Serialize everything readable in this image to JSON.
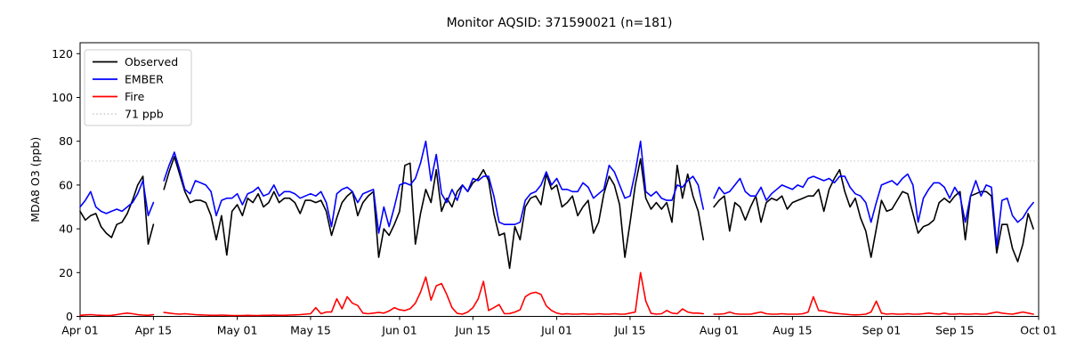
{
  "figure": {
    "title": "Monitor AQSID: 371590021 (n=181)"
  },
  "chart_data": {
    "type": "line",
    "title": "Monitor AQSID: 371590021 (n=181)",
    "xlabel": "",
    "ylabel": "MDA8 O3 (ppb)",
    "ylim": [
      0,
      125
    ],
    "grid": false,
    "legend_position": "upper-left",
    "y_ticks": [
      {
        "value": 0,
        "label": "0"
      },
      {
        "value": 20,
        "label": "20"
      },
      {
        "value": 40,
        "label": "40"
      },
      {
        "value": 60,
        "label": "60"
      },
      {
        "value": 80,
        "label": "80"
      },
      {
        "value": 100,
        "label": "100"
      },
      {
        "value": 120,
        "label": "120"
      }
    ],
    "x_range_days": [
      0,
      183
    ],
    "x_ticks": [
      {
        "day": 0,
        "label": "Apr 01"
      },
      {
        "day": 14,
        "label": "Apr 15"
      },
      {
        "day": 30,
        "label": "May 01"
      },
      {
        "day": 44,
        "label": "May 15"
      },
      {
        "day": 61,
        "label": "Jun 01"
      },
      {
        "day": 75,
        "label": "Jun 15"
      },
      {
        "day": 91,
        "label": "Jul 01"
      },
      {
        "day": 105,
        "label": "Jul 15"
      },
      {
        "day": 122,
        "label": "Aug 01"
      },
      {
        "day": 136,
        "label": "Aug 15"
      },
      {
        "day": 153,
        "label": "Sep 01"
      },
      {
        "day": 167,
        "label": "Sep 15"
      },
      {
        "day": 183,
        "label": "Oct 01"
      }
    ],
    "threshold": {
      "value": 71,
      "label": "71 ppb",
      "color": "#d3d3d3",
      "style": "dotted"
    },
    "legend": [
      {
        "label": "Observed",
        "color": "#000000",
        "style": "solid"
      },
      {
        "label": "EMBER",
        "color": "#0000ff",
        "style": "solid"
      },
      {
        "label": "Fire",
        "color": "#ff0000",
        "style": "solid"
      },
      {
        "label": "71 ppb",
        "color": "#d3d3d3",
        "style": "dotted"
      }
    ],
    "series": [
      {
        "name": "Observed",
        "color": "#000000",
        "values": [
          48,
          44,
          46,
          47,
          41,
          38,
          36,
          42,
          43,
          47,
          53,
          60,
          64,
          33,
          42,
          null,
          58,
          66,
          73,
          65,
          57,
          52,
          53,
          53,
          52,
          46,
          35,
          46,
          28,
          48,
          51,
          46,
          54,
          52,
          56,
          50,
          52,
          57,
          52,
          54,
          54,
          52,
          47,
          53,
          53,
          52,
          53,
          48,
          37,
          45,
          52,
          55,
          57,
          46,
          52,
          55,
          57,
          27,
          40,
          37,
          42,
          48,
          69,
          70,
          33,
          47,
          58,
          52,
          67,
          48,
          54,
          50,
          57,
          60,
          57,
          61,
          63,
          67,
          62,
          47,
          37,
          38,
          22,
          41,
          35,
          50,
          54,
          55,
          51,
          65,
          58,
          60,
          50,
          52,
          55,
          46,
          50,
          53,
          38,
          43,
          56,
          64,
          60,
          51,
          27,
          43,
          60,
          72,
          54,
          49,
          52,
          49,
          52,
          43,
          69,
          54,
          65,
          55,
          48,
          35,
          null,
          50,
          53,
          55,
          39,
          52,
          50,
          44,
          50,
          55,
          43,
          52,
          54,
          53,
          55,
          49,
          52,
          53,
          54,
          55,
          55,
          58,
          48,
          58,
          63,
          67,
          57,
          50,
          54,
          45,
          39,
          27,
          40,
          53,
          48,
          49,
          53,
          57,
          56,
          47,
          38,
          41,
          42,
          44,
          52,
          54,
          52,
          55,
          57,
          35,
          55,
          56,
          57,
          57,
          55,
          29,
          42,
          42,
          31,
          25,
          33,
          47,
          40
        ]
      },
      {
        "name": "EMBER",
        "color": "#0000ff",
        "values": [
          50,
          53,
          57,
          50,
          48,
          47,
          48,
          49,
          48,
          50,
          52,
          56,
          62,
          46,
          52,
          null,
          62,
          69,
          75,
          67,
          58,
          56,
          62,
          61,
          60,
          57,
          46,
          53,
          54,
          54,
          56,
          51,
          56,
          57,
          59,
          55,
          56,
          60,
          55,
          57,
          57,
          56,
          54,
          55,
          56,
          55,
          57,
          52,
          41,
          56,
          58,
          59,
          57,
          52,
          56,
          57,
          58,
          38,
          50,
          41,
          50,
          60,
          61,
          60,
          63,
          70,
          80,
          62,
          74,
          56,
          52,
          58,
          53,
          60,
          57,
          63,
          62,
          64,
          64,
          55,
          43,
          42,
          42,
          42,
          43,
          53,
          56,
          57,
          60,
          66,
          60,
          63,
          58,
          58,
          57,
          57,
          61,
          59,
          54,
          56,
          58,
          69,
          66,
          60,
          54,
          55,
          66,
          80,
          57,
          55,
          57,
          54,
          53,
          53,
          60,
          59,
          62,
          64,
          60,
          49,
          null,
          54,
          59,
          56,
          57,
          60,
          63,
          57,
          55,
          55,
          59,
          53,
          56,
          58,
          60,
          59,
          58,
          60,
          59,
          63,
          64,
          63,
          62,
          63,
          61,
          64,
          64,
          59,
          56,
          55,
          52,
          43,
          52,
          60,
          61,
          62,
          60,
          63,
          65,
          60,
          43,
          54,
          58,
          61,
          61,
          59,
          54,
          59,
          55,
          43,
          55,
          62,
          55,
          60,
          59,
          32,
          53,
          54,
          46,
          43,
          45,
          49,
          52
        ]
      },
      {
        "name": "Fire",
        "color": "#ff0000",
        "values": [
          0.5,
          0.7,
          0.8,
          0.6,
          0.5,
          0.4,
          0.5,
          0.8,
          1.2,
          1.5,
          1.2,
          0.8,
          0.6,
          0.5,
          0.8,
          null,
          1.8,
          1.5,
          1.2,
          1.0,
          1.2,
          1.0,
          0.8,
          0.7,
          0.6,
          0.5,
          0.5,
          0.6,
          0.5,
          0.4,
          0.4,
          0.4,
          0.5,
          0.4,
          0.4,
          0.5,
          0.5,
          0.6,
          0.5,
          0.5,
          0.6,
          0.7,
          0.8,
          1.0,
          1.2,
          4.0,
          1.2,
          2.0,
          2.0,
          8.0,
          3.5,
          9.0,
          6.0,
          5.0,
          1.5,
          1.2,
          1.5,
          1.8,
          1.5,
          2.5,
          4.0,
          3.0,
          2.7,
          3.5,
          6.0,
          11.0,
          18.0,
          7.5,
          14.0,
          15.0,
          10.0,
          4.0,
          1.4,
          1.0,
          2.0,
          4.0,
          8.0,
          16.0,
          2.7,
          4.0,
          5.4,
          1.2,
          1.3,
          2.0,
          3.0,
          9.0,
          10.5,
          11.0,
          10.0,
          4.8,
          2.7,
          1.5,
          1.0,
          1.2,
          1.0,
          1.0,
          1.2,
          1.0,
          1.0,
          1.2,
          1.0,
          1.0,
          1.2,
          1.0,
          1.0,
          1.5,
          2.0,
          20.0,
          7.0,
          1.4,
          1.0,
          1.2,
          2.7,
          1.5,
          1.2,
          3.4,
          2.0,
          1.5,
          1.5,
          1.2,
          null,
          1.0,
          1.0,
          1.2,
          2.0,
          1.2,
          1.0,
          1.0,
          1.0,
          1.5,
          2.0,
          1.2,
          1.0,
          1.0,
          1.2,
          1.0,
          1.0,
          1.0,
          1.2,
          2.0,
          9.0,
          2.7,
          2.5,
          1.8,
          1.5,
          1.2,
          1.0,
          0.8,
          0.7,
          0.8,
          1.0,
          2.0,
          7.0,
          1.5,
          1.0,
          1.2,
          1.0,
          1.0,
          1.2,
          1.0,
          1.0,
          1.2,
          1.5,
          1.2,
          1.0,
          1.5,
          1.0,
          1.0,
          1.2,
          1.0,
          1.0,
          1.2,
          1.0,
          1.0,
          1.5,
          2.0,
          1.5,
          1.2,
          1.0,
          1.5,
          2.0,
          1.5,
          1.0
        ]
      }
    ]
  }
}
